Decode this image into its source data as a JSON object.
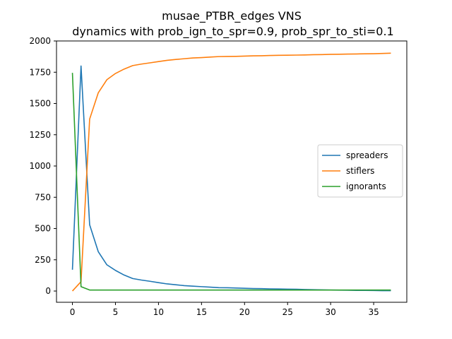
{
  "chart_data": {
    "type": "line",
    "title_line1": "musae_PTBR_edges VNS",
    "title_line2": "dynamics with prob_ign_to_spr=0.9, prob_spr_to_sti=0.1",
    "xlabel": "",
    "ylabel": "",
    "xlim": [
      -1.85,
      38.85
    ],
    "ylim": [
      -90,
      2000
    ],
    "xticks": [
      0,
      5,
      10,
      15,
      20,
      25,
      30,
      35
    ],
    "yticks": [
      0,
      250,
      500,
      750,
      1000,
      1250,
      1500,
      1750,
      2000
    ],
    "grid": false,
    "legend_position": "center-right",
    "x": [
      0,
      1,
      2,
      3,
      4,
      5,
      6,
      7,
      8,
      9,
      10,
      11,
      12,
      13,
      14,
      15,
      16,
      17,
      18,
      19,
      20,
      21,
      22,
      23,
      24,
      25,
      26,
      27,
      28,
      29,
      30,
      31,
      32,
      33,
      34,
      35,
      36,
      37
    ],
    "series": [
      {
        "name": "spreaders",
        "color": "#1f77b4",
        "values": [
          170,
          1800,
          530,
          315,
          210,
          165,
          128,
          100,
          88,
          78,
          67,
          57,
          50,
          43,
          39,
          35,
          31,
          27,
          26,
          24,
          22,
          20,
          19,
          17,
          16,
          15,
          14,
          12,
          11,
          9,
          8,
          7,
          6,
          5,
          5,
          4,
          3,
          3
        ]
      },
      {
        "name": "stiflers",
        "color": "#ff7f0e",
        "values": [
          0,
          75,
          1375,
          1585,
          1690,
          1740,
          1775,
          1803,
          1815,
          1825,
          1835,
          1845,
          1852,
          1858,
          1864,
          1867,
          1871,
          1875,
          1876,
          1877,
          1879,
          1881,
          1882,
          1884,
          1885,
          1886,
          1887,
          1888,
          1890,
          1891,
          1893,
          1894,
          1895,
          1896,
          1897,
          1898,
          1900,
          1902
        ]
      },
      {
        "name": "ignorants",
        "color": "#2ca02c",
        "values": [
          1745,
          35,
          8,
          8,
          8,
          8,
          8,
          8,
          8,
          8,
          8,
          8,
          8,
          8,
          8,
          8,
          8,
          8,
          8,
          8,
          8,
          8,
          8,
          8,
          8,
          8,
          8,
          8,
          8,
          8,
          8,
          8,
          8,
          8,
          8,
          8,
          8,
          8
        ]
      }
    ]
  }
}
